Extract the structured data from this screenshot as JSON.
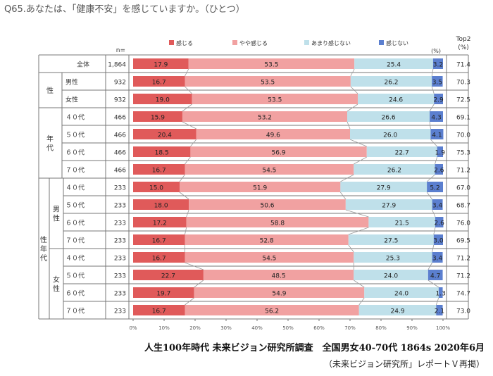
{
  "question": "Q65.あなたは、「健康不安」を感じていますか。（ひとつ）",
  "chart_data": {
    "type": "bar",
    "orientation": "horizontal",
    "stacked": true,
    "n_header": "n=",
    "unit_label": "(%)",
    "top2_header": [
      "Top2",
      "(%)"
    ],
    "legend": [
      {
        "label": "感じる",
        "color": "#e05a5a"
      },
      {
        "label": "やや感じる",
        "color": "#f1a1a1"
      },
      {
        "label": "あまり感じない",
        "color": "#bfe0ea"
      },
      {
        "label": "感じない",
        "color": "#5b7fcf"
      }
    ],
    "xticks": [
      "0%",
      "10%",
      "20%",
      "30%",
      "40%",
      "50%",
      "60%",
      "70%",
      "80%",
      "90%",
      "100%"
    ],
    "groups": [
      {
        "label": "",
        "sub": ""
      },
      {
        "label": "性",
        "sub": ""
      },
      {
        "label": "年代",
        "sub": ""
      },
      {
        "label": "性年代",
        "sub": "男性"
      },
      {
        "label": "",
        "sub": "女性"
      }
    ],
    "rows": [
      {
        "label": "全体",
        "n": "1,864",
        "values": [
          17.9,
          53.5,
          25.4,
          3.2
        ],
        "top2": "71.4"
      },
      {
        "label": "男性",
        "n": "932",
        "values": [
          16.7,
          53.5,
          26.2,
          3.5
        ],
        "top2": "70.3"
      },
      {
        "label": "女性",
        "n": "932",
        "values": [
          19.0,
          53.5,
          24.6,
          2.9
        ],
        "top2": "72.5"
      },
      {
        "label": "４０代",
        "n": "466",
        "values": [
          15.9,
          53.2,
          26.6,
          4.3
        ],
        "top2": "69.1"
      },
      {
        "label": "５０代",
        "n": "466",
        "values": [
          20.4,
          49.6,
          26.0,
          4.1
        ],
        "top2": "70.0"
      },
      {
        "label": "６０代",
        "n": "466",
        "values": [
          18.5,
          56.9,
          22.7,
          1.9
        ],
        "top2": "75.3"
      },
      {
        "label": "７０代",
        "n": "466",
        "values": [
          16.7,
          54.5,
          26.2,
          2.6
        ],
        "top2": "71.2"
      },
      {
        "label": "４０代",
        "n": "233",
        "values": [
          15.0,
          51.9,
          27.9,
          5.2
        ],
        "top2": "67.0"
      },
      {
        "label": "５０代",
        "n": "233",
        "values": [
          18.0,
          50.6,
          27.9,
          3.4
        ],
        "top2": "68.7"
      },
      {
        "label": "６０代",
        "n": "233",
        "values": [
          17.2,
          58.8,
          21.5,
          2.6
        ],
        "top2": "76.0"
      },
      {
        "label": "７０代",
        "n": "233",
        "values": [
          16.7,
          52.8,
          27.5,
          3.0
        ],
        "top2": "69.5"
      },
      {
        "label": "４０代",
        "n": "233",
        "values": [
          16.7,
          54.5,
          25.3,
          3.4
        ],
        "top2": "71.2"
      },
      {
        "label": "５０代",
        "n": "233",
        "values": [
          22.7,
          48.5,
          24.0,
          4.7
        ],
        "top2": "71.2"
      },
      {
        "label": "６０代",
        "n": "233",
        "values": [
          19.7,
          54.9,
          24.0,
          1.3
        ],
        "top2": "74.7"
      },
      {
        "label": "７０代",
        "n": "233",
        "values": [
          16.7,
          56.2,
          24.9,
          2.1
        ],
        "top2": "73.0"
      }
    ]
  },
  "source": "人生100年時代 未来ビジョン研究所調査　全国男女40-70代 1864s  2020年6月",
  "note": "（未来ビジョン研究所」レポートＶ再掲）"
}
